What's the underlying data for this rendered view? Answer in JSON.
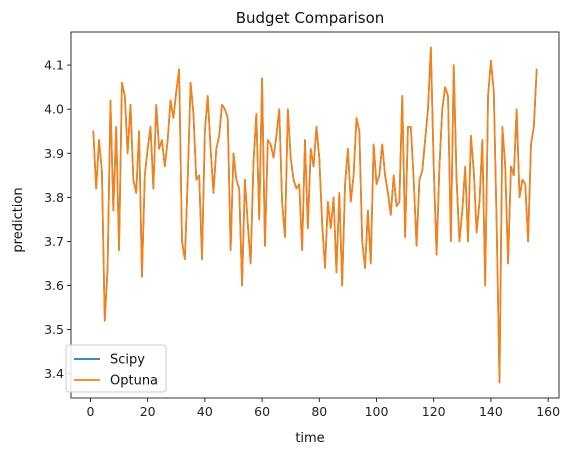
{
  "chart_data": {
    "type": "line",
    "title": "Budget Comparison",
    "xlabel": "time",
    "ylabel": "prediction",
    "xlim": [
      -6.8,
      163.8
    ],
    "ylim": [
      3.345,
      4.175
    ],
    "xticks": [
      0,
      20,
      40,
      60,
      80,
      100,
      120,
      140,
      160
    ],
    "yticks": [
      3.4,
      3.5,
      3.6,
      3.7,
      3.8,
      3.9,
      4.0,
      4.1
    ],
    "grid": false,
    "legend_position": "lower-left",
    "x_start": 1,
    "series": [
      {
        "name": "Scipy",
        "color": "#1f77b4",
        "values": [
          3.95,
          3.82,
          3.93,
          3.86,
          3.52,
          3.64,
          4.02,
          3.77,
          3.96,
          3.68,
          4.06,
          4.03,
          3.9,
          4.01,
          3.84,
          3.81,
          3.95,
          3.62,
          3.85,
          3.91,
          3.96,
          3.82,
          4.01,
          3.91,
          3.93,
          3.87,
          3.93,
          4.02,
          3.98,
          4.04,
          4.09,
          3.7,
          3.66,
          3.84,
          4.06,
          3.99,
          3.84,
          3.85,
          3.66,
          3.95,
          4.03,
          3.91,
          3.81,
          3.91,
          3.94,
          4.01,
          4.0,
          3.98,
          3.68,
          3.9,
          3.84,
          3.82,
          3.6,
          3.84,
          3.74,
          3.65,
          3.88,
          3.99,
          3.75,
          4.07,
          3.69,
          3.93,
          3.92,
          3.89,
          3.94,
          4.0,
          3.79,
          3.71,
          4.0,
          3.89,
          3.84,
          3.82,
          3.83,
          3.68,
          3.93,
          3.73,
          3.91,
          3.87,
          3.96,
          3.89,
          3.74,
          3.64,
          3.79,
          3.73,
          3.8,
          3.63,
          3.81,
          3.6,
          3.83,
          3.91,
          3.79,
          3.85,
          3.98,
          3.95,
          3.7,
          3.64,
          3.77,
          3.65,
          3.92,
          3.83,
          3.85,
          3.92,
          3.85,
          3.81,
          3.76,
          3.85,
          3.78,
          3.79,
          4.03,
          3.71,
          3.96,
          3.96,
          3.84,
          3.69,
          3.84,
          3.86,
          3.93,
          4.0,
          4.14,
          3.87,
          3.67,
          3.87,
          4.0,
          4.05,
          4.03,
          3.7,
          4.1,
          3.84,
          3.7,
          3.77,
          3.87,
          3.7,
          3.94,
          3.86,
          3.72,
          3.79,
          3.93,
          3.6,
          4.03,
          4.11,
          4.04,
          3.74,
          3.38,
          3.96,
          3.87,
          3.65,
          3.87,
          3.85,
          4.0,
          3.8,
          3.84,
          3.83,
          3.7,
          3.92,
          3.96,
          4.09
        ]
      },
      {
        "name": "Optuna",
        "color": "#ff7f0e",
        "values": [
          3.95,
          3.82,
          3.93,
          3.86,
          3.52,
          3.64,
          4.02,
          3.77,
          3.96,
          3.68,
          4.06,
          4.03,
          3.9,
          4.01,
          3.84,
          3.81,
          3.95,
          3.62,
          3.85,
          3.91,
          3.96,
          3.82,
          4.01,
          3.91,
          3.93,
          3.87,
          3.93,
          4.02,
          3.98,
          4.04,
          4.09,
          3.7,
          3.66,
          3.84,
          4.06,
          3.99,
          3.84,
          3.85,
          3.66,
          3.95,
          4.03,
          3.91,
          3.81,
          3.91,
          3.94,
          4.01,
          4.0,
          3.98,
          3.68,
          3.9,
          3.84,
          3.82,
          3.6,
          3.84,
          3.74,
          3.65,
          3.88,
          3.99,
          3.75,
          4.07,
          3.69,
          3.93,
          3.92,
          3.89,
          3.94,
          4.0,
          3.79,
          3.71,
          4.0,
          3.89,
          3.84,
          3.82,
          3.83,
          3.68,
          3.93,
          3.73,
          3.91,
          3.87,
          3.96,
          3.89,
          3.74,
          3.64,
          3.79,
          3.73,
          3.8,
          3.63,
          3.81,
          3.6,
          3.83,
          3.91,
          3.79,
          3.85,
          3.98,
          3.95,
          3.7,
          3.64,
          3.77,
          3.65,
          3.92,
          3.83,
          3.85,
          3.92,
          3.85,
          3.81,
          3.76,
          3.85,
          3.78,
          3.79,
          4.03,
          3.71,
          3.96,
          3.96,
          3.84,
          3.69,
          3.84,
          3.86,
          3.93,
          4.0,
          4.14,
          3.87,
          3.67,
          3.87,
          4.0,
          4.05,
          4.03,
          3.7,
          4.1,
          3.84,
          3.7,
          3.77,
          3.87,
          3.7,
          3.94,
          3.86,
          3.72,
          3.79,
          3.93,
          3.6,
          4.03,
          4.11,
          4.04,
          3.74,
          3.38,
          3.96,
          3.87,
          3.65,
          3.87,
          3.85,
          4.0,
          3.8,
          3.84,
          3.83,
          3.7,
          3.92,
          3.96,
          4.09
        ]
      }
    ]
  }
}
